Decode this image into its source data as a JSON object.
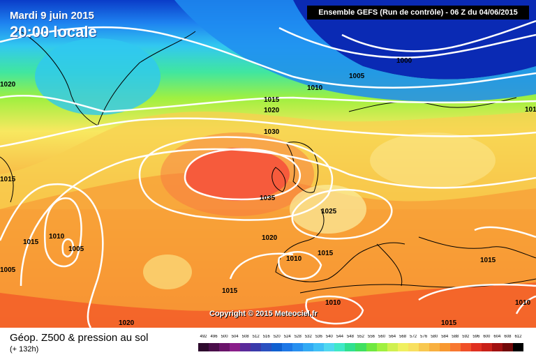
{
  "header": {
    "date": "Mardi 9 juin 2015",
    "local_time": "20:00 locale",
    "run_info": "Ensemble GEFS  (Run de contrôle)  -  06 Z du 04/06/2015"
  },
  "copyright": "Copyright © 2015 Meteociel.fr",
  "footer": {
    "field_title": "Géop. Z500 & pression au sol",
    "lead_time": "(+ 132h)"
  },
  "isobar_labels": [
    "1020",
    "1015",
    "1010",
    "1005",
    "1000",
    "1005",
    "1010",
    "1015",
    "1020",
    "1030",
    "1035",
    "1025",
    "1020",
    "1015",
    "1015",
    "1010",
    "1005",
    "1010",
    "1015",
    "1010",
    "1015",
    "1020",
    "1015",
    "1015"
  ],
  "scale": {
    "values": [
      "492",
      "496",
      "500",
      "504",
      "508",
      "512",
      "516",
      "520",
      "524",
      "528",
      "532",
      "536",
      "540",
      "544",
      "548",
      "552",
      "556",
      "560",
      "564",
      "568",
      "572",
      "576",
      "580",
      "584",
      "588",
      "592",
      "596",
      "600",
      "604",
      "608",
      "612"
    ],
    "colors": [
      "#2d0a2d",
      "#4a0e4a",
      "#6a146a",
      "#8a1e8a",
      "#5a2a9a",
      "#3a3aaa",
      "#2a50c0",
      "#1060d0",
      "#1e78e6",
      "#2890f0",
      "#32aaf4",
      "#40c0f6",
      "#50d8f0",
      "#40e8c8",
      "#30e090",
      "#40e060",
      "#70e840",
      "#a0f040",
      "#d0f050",
      "#f0f060",
      "#f8e060",
      "#f8c850",
      "#f8b040",
      "#f89830",
      "#f87830",
      "#f05028",
      "#e03020",
      "#c82018",
      "#a01010",
      "#700808",
      "#000000"
    ]
  }
}
